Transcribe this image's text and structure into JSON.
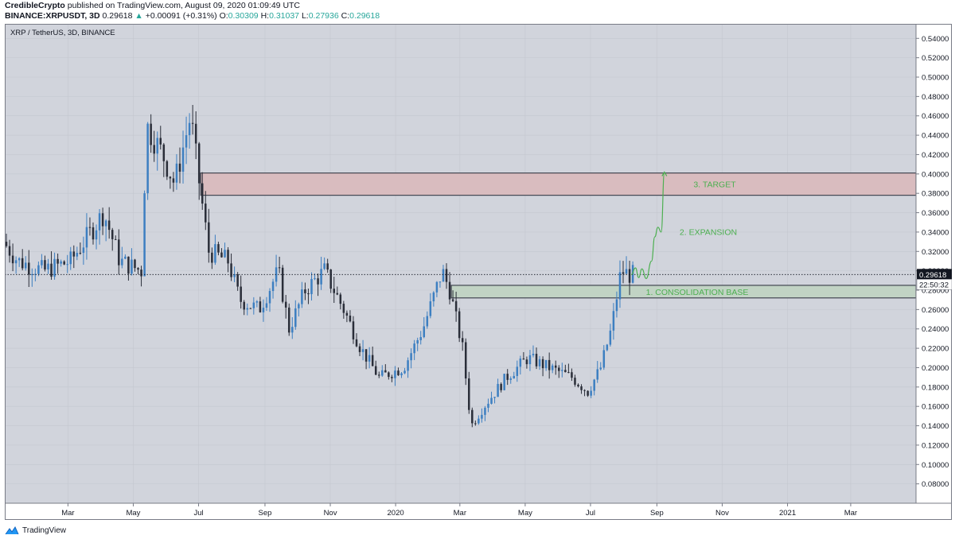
{
  "header": {
    "author": "CredibleCrypto",
    "published_text": "published on TradingView.com, August 09, 2020 01:09:49 UTC",
    "symbol": "BINANCE:XRPUSDT, 3D",
    "last": "0.29618",
    "change_arrow": "▲",
    "change": "+0.00091 (+0.31%)",
    "o_label": "O:",
    "o_value": "0.30309",
    "h_label": "H:",
    "h_value": "0.31037",
    "l_label": "L:",
    "l_value": "0.27936",
    "c_label": "C:",
    "c_value": "0.29618"
  },
  "footer": {
    "brand": "TradingView"
  },
  "colors": {
    "background": "#d1d4dc",
    "bull": "#3d7fc1",
    "bear": "#2a2e39",
    "target_zone": "#d9bcbf",
    "base_zone": "#c1d3c4",
    "annotation": "#4caf50",
    "axis_bg": "#ffffff",
    "price_badge": "#131722"
  },
  "chart_data": {
    "type": "candlestick",
    "title": "XRP / TetherUS, 3D, BINANCE",
    "y_range": [
      0.06,
      0.555
    ],
    "y_ticks": [
      "0.54000",
      "0.52000",
      "0.50000",
      "0.48000",
      "0.46000",
      "0.44000",
      "0.42000",
      "0.40000",
      "0.38000",
      "0.36000",
      "0.34000",
      "0.32000",
      "0.30000",
      "0.28000",
      "0.26000",
      "0.24000",
      "0.22000",
      "0.20000",
      "0.18000",
      "0.16000",
      "0.14000",
      "0.12000",
      "0.10000",
      "0.08000"
    ],
    "x_range": [
      "2019-01-01",
      "2021-05-01"
    ],
    "x_ticks": [
      {
        "label": "Mar",
        "date": "2019-03-01"
      },
      {
        "label": "May",
        "date": "2019-05-01"
      },
      {
        "label": "Jul",
        "date": "2019-07-01"
      },
      {
        "label": "Sep",
        "date": "2019-09-01"
      },
      {
        "label": "Nov",
        "date": "2019-11-01"
      },
      {
        "label": "2020",
        "date": "2020-01-01"
      },
      {
        "label": "Mar",
        "date": "2020-03-01"
      },
      {
        "label": "May",
        "date": "2020-05-01"
      },
      {
        "label": "Jul",
        "date": "2020-07-01"
      },
      {
        "label": "Sep",
        "date": "2020-09-01"
      },
      {
        "label": "Nov",
        "date": "2020-11-01"
      },
      {
        "label": "2021",
        "date": "2021-01-01"
      },
      {
        "label": "Mar",
        "date": "2021-03-01"
      }
    ],
    "last_price": "0.29618",
    "countdown": "22:50:32",
    "zones": [
      {
        "name": "target",
        "label": "3. TARGET",
        "low": 0.378,
        "high": 0.401,
        "start": "2019-07-03"
      },
      {
        "name": "consolidation-base",
        "label": "1. CONSOLIDATION BASE",
        "low": 0.272,
        "high": 0.285,
        "start": "2020-02-22"
      }
    ],
    "annotations": [
      {
        "name": "expansion",
        "label": "2. EXPANSION"
      }
    ],
    "projection_path": [
      {
        "date": "2020-08-08",
        "value": 0.296
      },
      {
        "date": "2020-08-12",
        "value": 0.303
      },
      {
        "date": "2020-08-15",
        "value": 0.293
      },
      {
        "date": "2020-08-18",
        "value": 0.302
      },
      {
        "date": "2020-08-22",
        "value": 0.292
      },
      {
        "date": "2020-08-27",
        "value": 0.31
      },
      {
        "date": "2020-08-30",
        "value": 0.335
      },
      {
        "date": "2020-09-02",
        "value": 0.345
      },
      {
        "date": "2020-09-05",
        "value": 0.34
      },
      {
        "date": "2020-09-08",
        "value": 0.402
      }
    ],
    "series_anchors": [
      {
        "date": "2019-01-01",
        "value": 0.33
      },
      {
        "date": "2019-01-15",
        "value": 0.31
      },
      {
        "date": "2019-02-08",
        "value": 0.3
      },
      {
        "date": "2019-03-05",
        "value": 0.31
      },
      {
        "date": "2019-04-05",
        "value": 0.36
      },
      {
        "date": "2019-04-20",
        "value": 0.31
      },
      {
        "date": "2019-05-10",
        "value": 0.3
      },
      {
        "date": "2019-05-15",
        "value": 0.45
      },
      {
        "date": "2019-05-30",
        "value": 0.42
      },
      {
        "date": "2019-06-10",
        "value": 0.39
      },
      {
        "date": "2019-06-25",
        "value": 0.46
      },
      {
        "date": "2019-07-02",
        "value": 0.4
      },
      {
        "date": "2019-07-12",
        "value": 0.32
      },
      {
        "date": "2019-07-30",
        "value": 0.31
      },
      {
        "date": "2019-08-10",
        "value": 0.27
      },
      {
        "date": "2019-08-28",
        "value": 0.26
      },
      {
        "date": "2019-09-15",
        "value": 0.3
      },
      {
        "date": "2019-09-25",
        "value": 0.24
      },
      {
        "date": "2019-10-10",
        "value": 0.28
      },
      {
        "date": "2019-10-28",
        "value": 0.3
      },
      {
        "date": "2019-11-15",
        "value": 0.26
      },
      {
        "date": "2019-12-01",
        "value": 0.22
      },
      {
        "date": "2019-12-18",
        "value": 0.19
      },
      {
        "date": "2020-01-10",
        "value": 0.2
      },
      {
        "date": "2020-01-28",
        "value": 0.24
      },
      {
        "date": "2020-02-15",
        "value": 0.3
      },
      {
        "date": "2020-02-22",
        "value": 0.28
      },
      {
        "date": "2020-03-05",
        "value": 0.22
      },
      {
        "date": "2020-03-13",
        "value": 0.14
      },
      {
        "date": "2020-03-25",
        "value": 0.16
      },
      {
        "date": "2020-04-15",
        "value": 0.19
      },
      {
        "date": "2020-05-05",
        "value": 0.21
      },
      {
        "date": "2020-05-25",
        "value": 0.2
      },
      {
        "date": "2020-06-15",
        "value": 0.19
      },
      {
        "date": "2020-06-30",
        "value": 0.175
      },
      {
        "date": "2020-07-12",
        "value": 0.2
      },
      {
        "date": "2020-07-22",
        "value": 0.24
      },
      {
        "date": "2020-07-31",
        "value": 0.3
      },
      {
        "date": "2020-08-08",
        "value": 0.296
      }
    ]
  }
}
